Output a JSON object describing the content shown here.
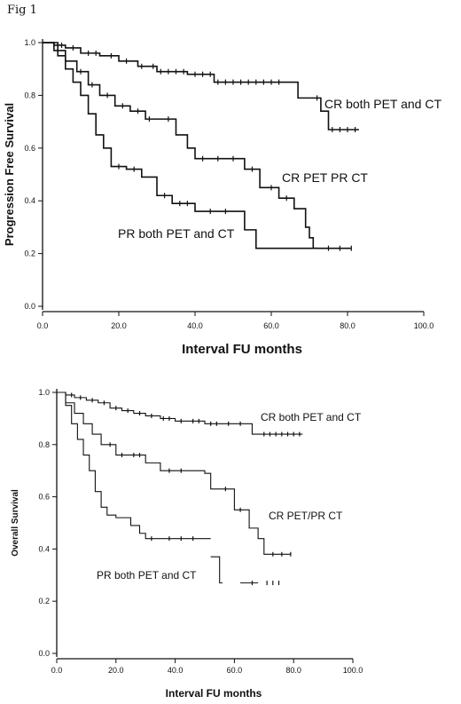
{
  "figure_label": "Fig 1",
  "chart_data": [
    {
      "type": "line",
      "title": "",
      "xlabel": "Interval FU months",
      "ylabel": "Progression Free Survival",
      "xlim": [
        0,
        100
      ],
      "ylim": [
        0,
        1
      ],
      "xticks": [
        "0.0",
        "20.0",
        "40.0",
        "60.0",
        "80.0",
        "100.0"
      ],
      "yticks": [
        "0.0",
        "0.2",
        "0.4",
        "0.6",
        "0.8",
        "1.0"
      ],
      "grid": false,
      "step": true,
      "series": [
        {
          "name": "CR both PET and CT",
          "x": [
            0,
            3,
            6,
            10,
            15,
            20,
            25,
            30,
            38,
            45,
            55,
            62,
            67,
            70,
            73,
            75,
            77,
            83
          ],
          "y": [
            1.0,
            0.99,
            0.98,
            0.96,
            0.95,
            0.93,
            0.91,
            0.89,
            0.88,
            0.85,
            0.85,
            0.85,
            0.79,
            0.79,
            0.74,
            0.67,
            0.67,
            0.67
          ],
          "censored_x": [
            5,
            8,
            12,
            14,
            18,
            22,
            26,
            29,
            31,
            33,
            35,
            37,
            40,
            42,
            44,
            46,
            48,
            50,
            52,
            54,
            56,
            58,
            60,
            62,
            72,
            76,
            78,
            80,
            82
          ]
        },
        {
          "name": "CR PET PR CT",
          "x": [
            0,
            3,
            6,
            9,
            12,
            15,
            19,
            23,
            27,
            31,
            35,
            38,
            40,
            44,
            48,
            53,
            57,
            62,
            66,
            69,
            70,
            71,
            72,
            81
          ],
          "y": [
            1.0,
            0.97,
            0.93,
            0.89,
            0.84,
            0.8,
            0.76,
            0.74,
            0.71,
            0.71,
            0.65,
            0.6,
            0.56,
            0.56,
            0.56,
            0.52,
            0.45,
            0.41,
            0.37,
            0.3,
            0.26,
            0.22,
            0.22,
            0.22
          ],
          "censored_x": [
            10,
            13,
            17,
            21,
            25,
            28,
            33,
            42,
            46,
            50,
            55,
            60,
            64,
            75,
            78,
            81
          ]
        },
        {
          "name": "PR both PET and CT",
          "x": [
            0,
            4,
            6,
            8,
            10,
            12,
            14,
            16,
            18,
            22,
            26,
            30,
            34,
            40,
            50,
            53,
            56,
            62,
            70,
            72
          ],
          "y": [
            1.0,
            0.95,
            0.9,
            0.85,
            0.8,
            0.73,
            0.65,
            0.6,
            0.53,
            0.52,
            0.49,
            0.42,
            0.39,
            0.36,
            0.36,
            0.29,
            0.22,
            0.22,
            0.22,
            0.22
          ],
          "censored_x": [
            20,
            24,
            32,
            36,
            38,
            44,
            48
          ]
        }
      ]
    },
    {
      "type": "line",
      "title": "",
      "xlabel": "Interval FU months",
      "ylabel": "Overall Survival",
      "xlim": [
        0,
        100
      ],
      "ylim": [
        0,
        1
      ],
      "xticks": [
        "0.0",
        "20.0",
        "40.0",
        "60.0",
        "80.0",
        "100.0"
      ],
      "yticks": [
        "0.0",
        "0.2",
        "0.4",
        "0.6",
        "0.8",
        "1.0"
      ],
      "grid": false,
      "step": true,
      "series": [
        {
          "name": "CR both PET and CT",
          "x": [
            0,
            3,
            6,
            10,
            14,
            18,
            22,
            26,
            30,
            35,
            40,
            45,
            50,
            55,
            60,
            64,
            66,
            68,
            83
          ],
          "y": [
            1.0,
            0.99,
            0.98,
            0.97,
            0.96,
            0.94,
            0.93,
            0.92,
            0.91,
            0.9,
            0.89,
            0.89,
            0.88,
            0.88,
            0.88,
            0.88,
            0.84,
            0.84,
            0.84
          ],
          "censored_x": [
            5,
            8,
            12,
            16,
            20,
            24,
            28,
            32,
            36,
            38,
            42,
            46,
            48,
            52,
            54,
            58,
            62,
            70,
            72,
            74,
            76,
            78,
            80,
            82
          ]
        },
        {
          "name": "CR PET/PR CT",
          "x": [
            0,
            3,
            6,
            9,
            12,
            15,
            20,
            25,
            30,
            35,
            40,
            45,
            50,
            52,
            56,
            60,
            65,
            68,
            70,
            75,
            79
          ],
          "y": [
            1.0,
            0.96,
            0.92,
            0.88,
            0.84,
            0.8,
            0.76,
            0.76,
            0.73,
            0.7,
            0.7,
            0.7,
            0.69,
            0.63,
            0.63,
            0.55,
            0.48,
            0.44,
            0.38,
            0.38,
            0.38
          ],
          "censored_x": [
            18,
            22,
            26,
            28,
            38,
            42,
            57,
            62,
            73,
            76,
            79
          ]
        },
        {
          "name": "PR both PET and CT",
          "x": [
            0,
            3,
            5,
            7,
            9,
            11,
            13,
            15,
            17,
            20,
            25,
            28,
            30,
            35,
            40,
            45,
            50,
            52
          ],
          "y": [
            1.0,
            0.95,
            0.88,
            0.82,
            0.76,
            0.7,
            0.62,
            0.56,
            0.53,
            0.52,
            0.49,
            0.46,
            0.44,
            0.44,
            0.44,
            0.44,
            0.44,
            0.44
          ],
          "censored_x": [
            32,
            38,
            42,
            46
          ]
        },
        {
          "name": "",
          "x": [
            52,
            55,
            55,
            56
          ],
          "y": [
            0.37,
            0.37,
            0.27,
            0.27
          ],
          "censored_x": []
        },
        {
          "name": "",
          "x": [
            62,
            68
          ],
          "y": [
            0.27,
            0.27
          ],
          "censored_x": [
            66,
            71,
            73,
            75
          ]
        }
      ]
    }
  ]
}
